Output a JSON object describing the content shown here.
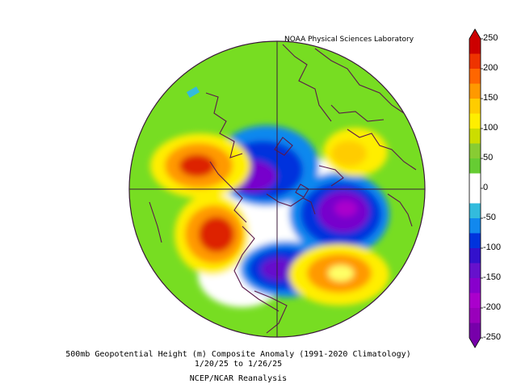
{
  "credit": "NOAA Physical Sciences Laboratory",
  "caption": {
    "title": "500mb Geopotential Height (m) Composite Anomaly (1991-2020 Climatology)",
    "dates": "1/20/25  to 1/26/25",
    "source": "NCEP/NCAR Reanalysis"
  },
  "colorbar": {
    "labels": [
      "250",
      "200",
      "150",
      "100",
      "50",
      "0",
      "-50",
      "-100",
      "-150",
      "-200",
      "-250"
    ],
    "bands": [
      "#cc0000",
      "#ee3300",
      "#ff6600",
      "#ff9900",
      "#ffcc00",
      "#ffee00",
      "#ccdd00",
      "#88cc33",
      "#66cc33",
      "#ffffff",
      "#ffffff",
      "#33bbdd",
      "#1188ee",
      "#0033dd",
      "#3311cc",
      "#6611cc",
      "#8800cc",
      "#aa00cc",
      "#9900bb",
      "#7700aa"
    ]
  },
  "map": {
    "projection": "north-polar-stereographic",
    "colors": {
      "coastline": "#5b1a4a",
      "background_field": "#77dd22",
      "strong_positive": "#dd2200",
      "strong_negative": "#7700cc"
    }
  }
}
